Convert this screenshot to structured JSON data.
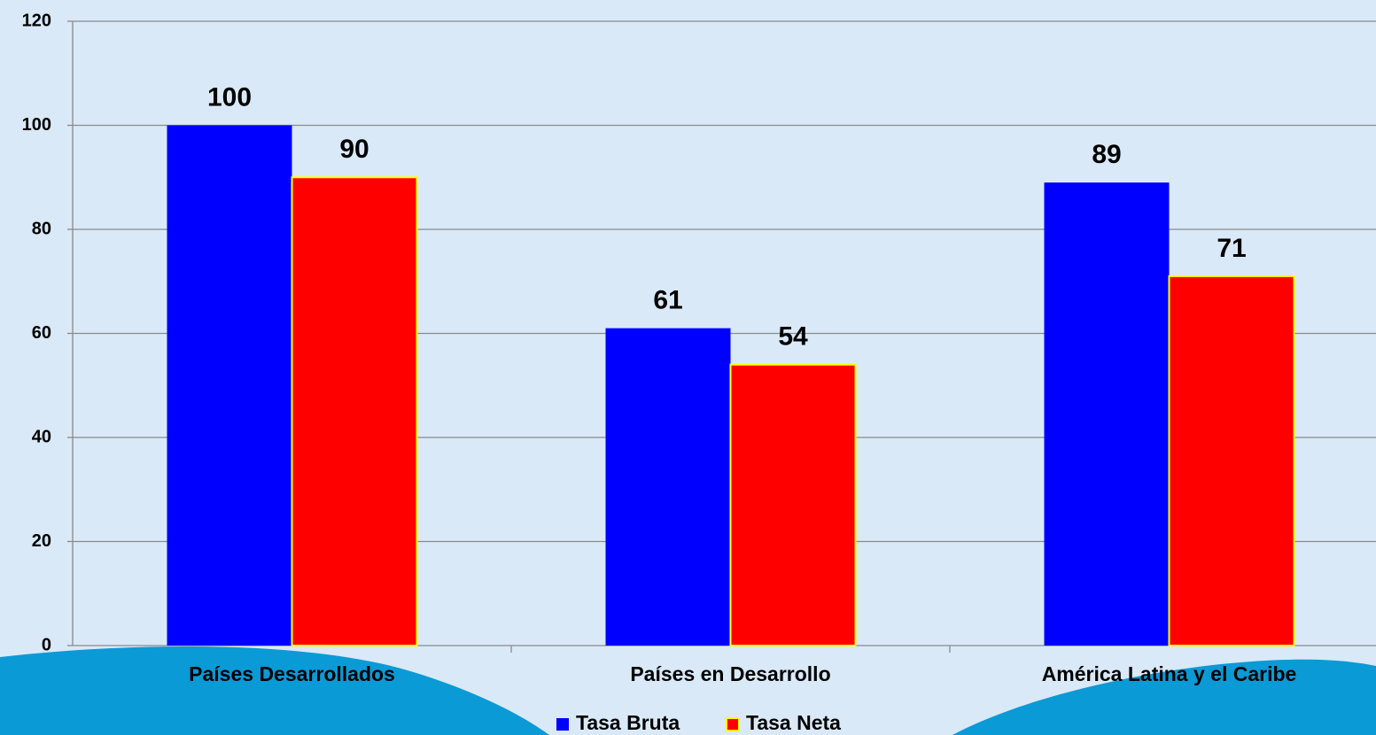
{
  "chart_data": {
    "type": "bar",
    "categories": [
      "Países Desarrollados",
      "Países en Desarrollo",
      "América Latina y el Caribe"
    ],
    "series": [
      {
        "name": "Tasa Bruta",
        "color": "#0000ff",
        "values": [
          100,
          61,
          89
        ]
      },
      {
        "name": "Tasa Neta",
        "color": "#ff0000",
        "values": [
          90,
          54,
          71
        ]
      }
    ],
    "ylim": [
      0,
      120
    ],
    "yticks": [
      0,
      20,
      40,
      60,
      80,
      100,
      120
    ],
    "grid": true,
    "legend": "bottom"
  }
}
